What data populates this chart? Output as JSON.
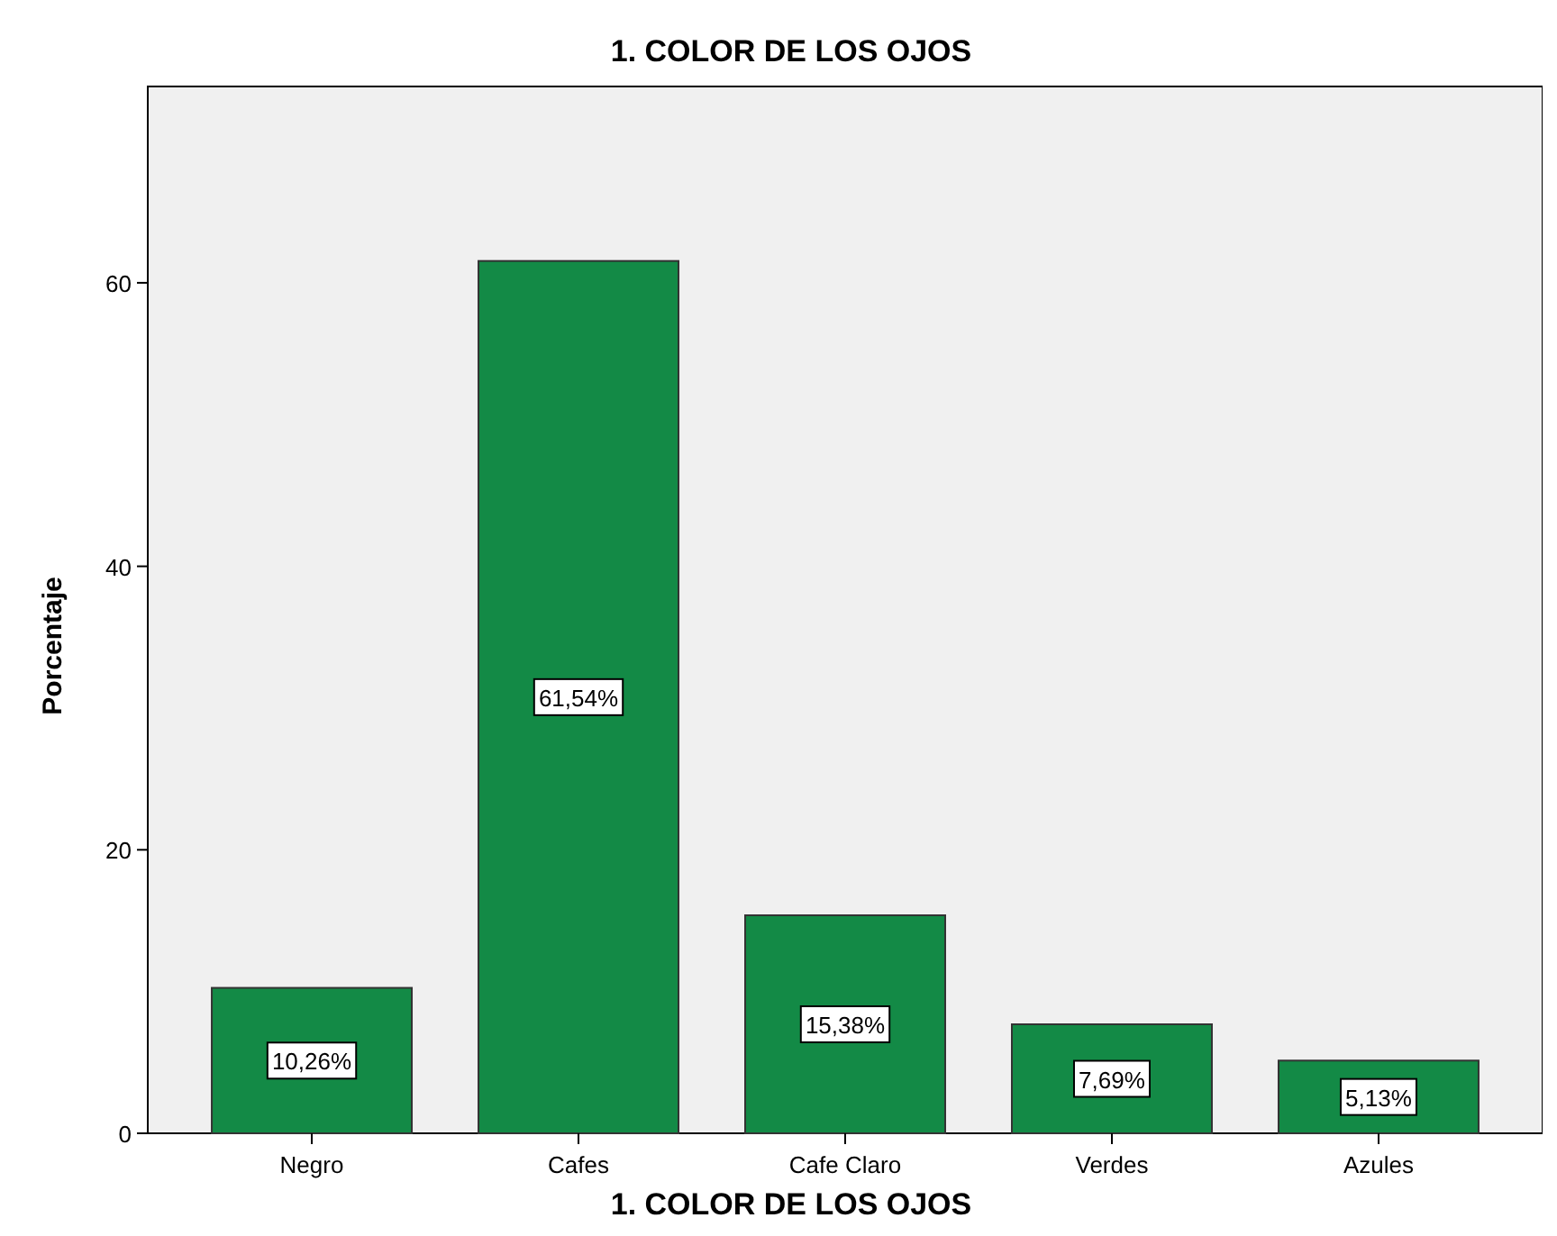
{
  "chart_data": {
    "type": "bar",
    "title": "1. COLOR DE LOS OJOS",
    "xlabel": "1. COLOR DE LOS OJOS",
    "ylabel": "Porcentaje",
    "categories": [
      "Negro",
      "Cafes",
      "Cafe Claro",
      "Verdes",
      "Azules"
    ],
    "values": [
      10.26,
      61.54,
      15.38,
      7.69,
      5.13
    ],
    "value_labels": [
      "10,26%",
      "61,54%",
      "15,38%",
      "7,69%",
      "5,13%"
    ],
    "color": "#138a46",
    "ylim": [
      0,
      73.85
    ],
    "yticks": [
      0,
      20,
      40,
      60
    ],
    "grid": false
  }
}
